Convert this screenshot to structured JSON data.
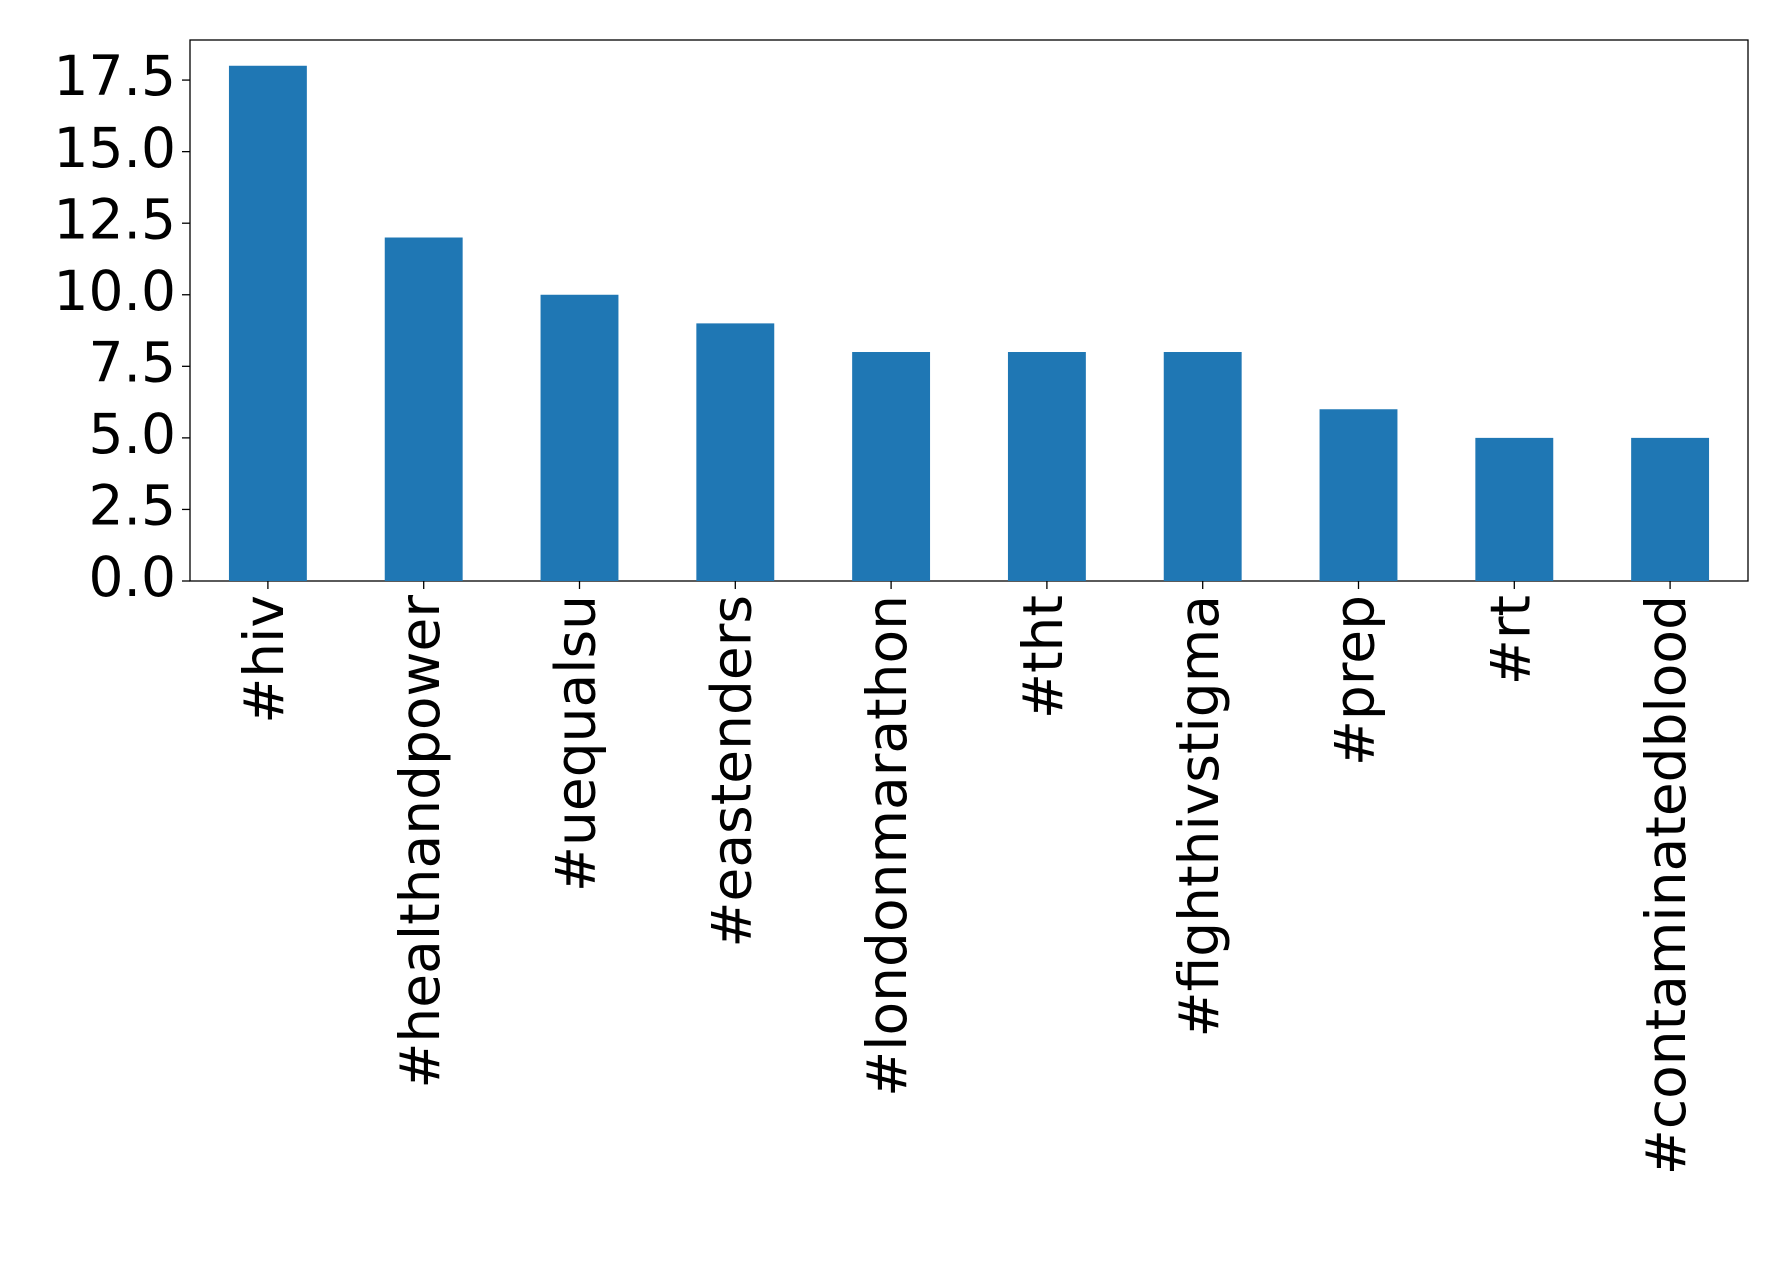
{
  "chart_data": {
    "type": "bar",
    "categories": [
      "#hiv",
      "#healthandpower",
      "#uequalsu",
      "#eastenders",
      "#londonmarathon",
      "#tht",
      "#fighthivstigma",
      "#prep",
      "#rt",
      "#contaminatedblood"
    ],
    "values": [
      18,
      12,
      10,
      9,
      8,
      8,
      8,
      6,
      5,
      5
    ],
    "color": "#1f77b4",
    "ylim": [
      0,
      18.9
    ],
    "yticks": [
      {
        "value": 0,
        "label": "0.0"
      },
      2.5,
      {
        "value": 5,
        "label": "5.0"
      },
      7.5,
      {
        "value": 10,
        "label": "10.0"
      },
      12.5,
      {
        "value": 15,
        "label": "15.0"
      },
      17.5
    ]
  }
}
